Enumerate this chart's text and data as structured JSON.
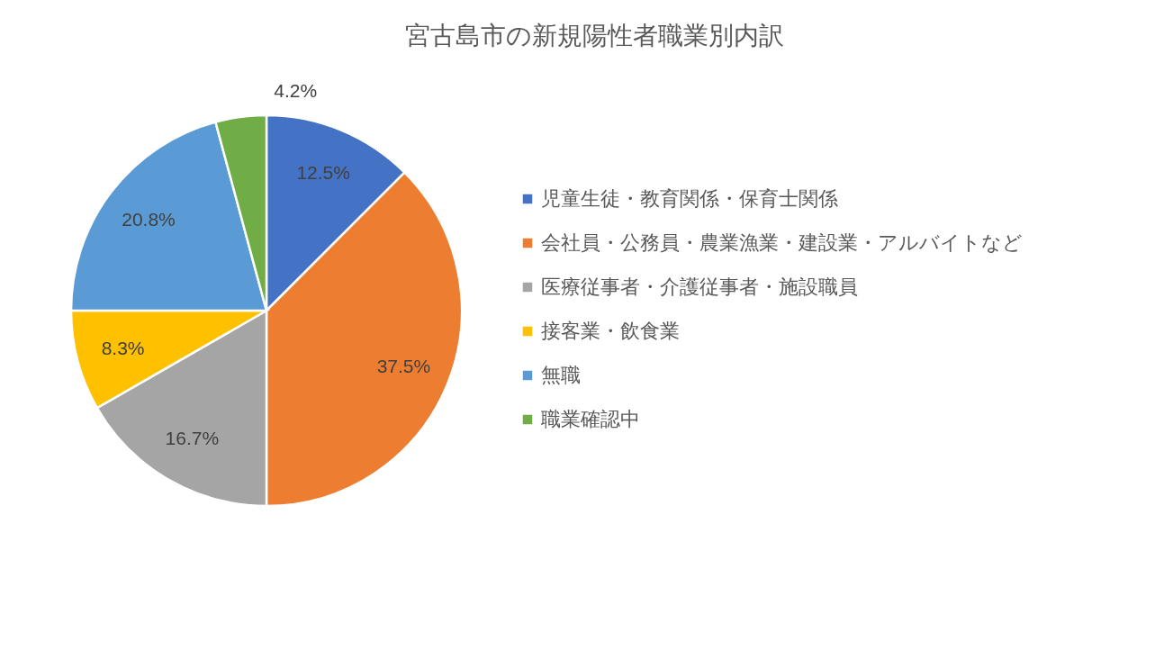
{
  "chart_data": {
    "type": "pie",
    "title": "宮古島市の新規陽性者職業別内訳",
    "categories": [
      "児童生徒・教育関係・保育士関係",
      "会社員・公務員・農業漁業・建設業・アルバイトなど",
      "医療従事者・介護従事者・施設職員",
      "接客業・飲食業",
      "無職",
      "職業確認中"
    ],
    "values": [
      12.5,
      37.5,
      16.7,
      8.3,
      20.8,
      4.2
    ],
    "value_labels": [
      "12.5%",
      "37.5%",
      "16.7%",
      "8.3%",
      "20.8%",
      "4.2%"
    ],
    "colors": [
      "#4472c4",
      "#ed7d31",
      "#a5a5a5",
      "#ffc000",
      "#5b9bd5",
      "#70ad47"
    ],
    "legend": "right"
  }
}
